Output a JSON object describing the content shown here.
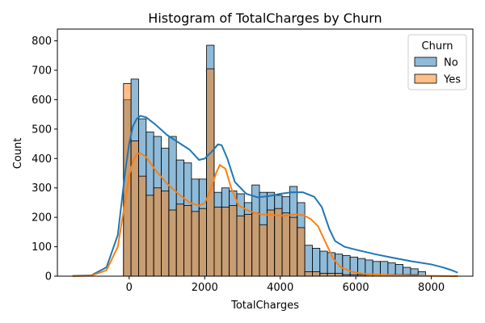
{
  "chart_data": {
    "type": "bar",
    "title": "Histogram of TotalCharges by Churn",
    "xlabel": "TotalCharges",
    "ylabel": "Count",
    "xlim": [
      -1900,
      9100
    ],
    "ylim": [
      0,
      840
    ],
    "xticks": [
      0,
      2000,
      4000,
      6000,
      8000
    ],
    "yticks": [
      0,
      100,
      200,
      300,
      400,
      500,
      600,
      700,
      800
    ],
    "grid": false,
    "legend": {
      "title": "Churn",
      "placement": "top-right"
    },
    "bin_start": -150,
    "bin_width": 200,
    "series": [
      {
        "name": "No",
        "color": "#1f77b4",
        "values": [
          600,
          670,
          535,
          490,
          475,
          435,
          475,
          395,
          385,
          330,
          330,
          785,
          285,
          300,
          290,
          280,
          250,
          310,
          285,
          285,
          275,
          270,
          305,
          250,
          105,
          95,
          85,
          80,
          75,
          70,
          65,
          60,
          55,
          50,
          50,
          45,
          40,
          30,
          25,
          15
        ],
        "kde": [
          [
            -1500,
            1
          ],
          [
            -1000,
            3
          ],
          [
            -600,
            30
          ],
          [
            -300,
            140
          ],
          [
            -100,
            360
          ],
          [
            0,
            450
          ],
          [
            100,
            510
          ],
          [
            200,
            535
          ],
          [
            300,
            545
          ],
          [
            450,
            540
          ],
          [
            700,
            515
          ],
          [
            1000,
            480
          ],
          [
            1300,
            455
          ],
          [
            1600,
            430
          ],
          [
            1850,
            395
          ],
          [
            2000,
            400
          ],
          [
            2200,
            425
          ],
          [
            2350,
            448
          ],
          [
            2450,
            445
          ],
          [
            2600,
            400
          ],
          [
            2800,
            320
          ],
          [
            3100,
            280
          ],
          [
            3400,
            268
          ],
          [
            3700,
            272
          ],
          [
            4000,
            280
          ],
          [
            4300,
            285
          ],
          [
            4600,
            285
          ],
          [
            4900,
            270
          ],
          [
            5100,
            235
          ],
          [
            5300,
            160
          ],
          [
            5450,
            120
          ],
          [
            5700,
            100
          ],
          [
            6000,
            90
          ],
          [
            6500,
            75
          ],
          [
            7000,
            62
          ],
          [
            7500,
            50
          ],
          [
            8000,
            40
          ],
          [
            8300,
            30
          ],
          [
            8500,
            22
          ],
          [
            8700,
            12
          ]
        ]
      },
      {
        "name": "Yes",
        "color": "#ff7f0e",
        "values": [
          655,
          460,
          340,
          275,
          300,
          290,
          225,
          245,
          240,
          220,
          230,
          705,
          235,
          235,
          240,
          205,
          210,
          215,
          175,
          225,
          230,
          215,
          200,
          165,
          15,
          15,
          10,
          10,
          10,
          5,
          5,
          5,
          5,
          5,
          5,
          5,
          5,
          5,
          5,
          0
        ],
        "kde": [
          [
            -1500,
            0
          ],
          [
            -1000,
            2
          ],
          [
            -600,
            20
          ],
          [
            -300,
            100
          ],
          [
            -100,
            260
          ],
          [
            0,
            340
          ],
          [
            100,
            390
          ],
          [
            200,
            415
          ],
          [
            300,
            418
          ],
          [
            450,
            405
          ],
          [
            700,
            360
          ],
          [
            1000,
            315
          ],
          [
            1300,
            280
          ],
          [
            1600,
            250
          ],
          [
            1850,
            240
          ],
          [
            2000,
            248
          ],
          [
            2150,
            290
          ],
          [
            2300,
            350
          ],
          [
            2400,
            378
          ],
          [
            2550,
            365
          ],
          [
            2700,
            300
          ],
          [
            2900,
            240
          ],
          [
            3200,
            220
          ],
          [
            3500,
            210
          ],
          [
            3800,
            208
          ],
          [
            4100,
            205
          ],
          [
            4400,
            210
          ],
          [
            4600,
            208
          ],
          [
            4800,
            195
          ],
          [
            5000,
            170
          ],
          [
            5200,
            115
          ],
          [
            5400,
            60
          ],
          [
            5600,
            30
          ],
          [
            5900,
            15
          ],
          [
            6200,
            8
          ],
          [
            7000,
            3
          ],
          [
            8000,
            1
          ],
          [
            8700,
            0
          ]
        ]
      }
    ]
  }
}
